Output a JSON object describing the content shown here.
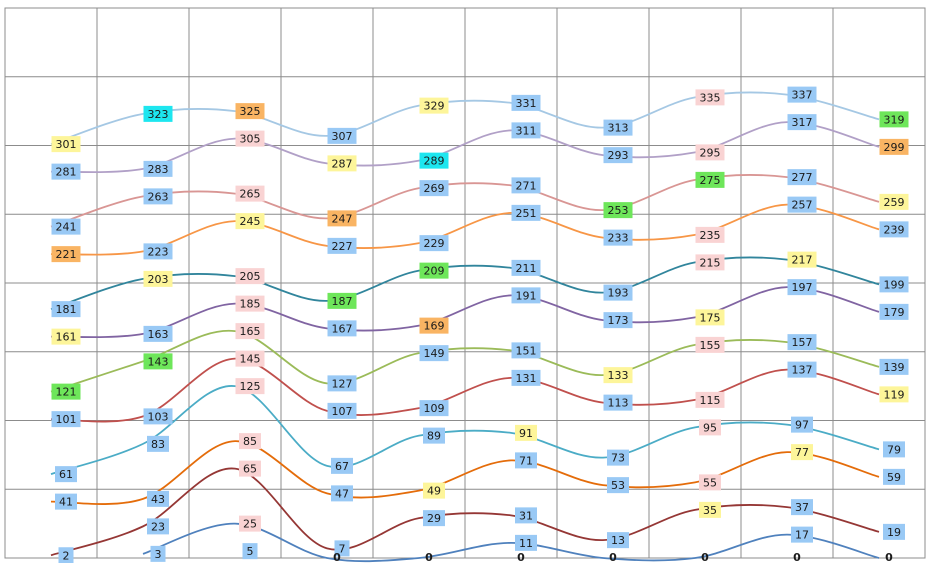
{
  "chart_data": {
    "type": "line",
    "smooth": true,
    "grid": true,
    "ylim": [
      0,
      400
    ],
    "yticks": [
      0,
      50,
      100,
      150,
      200,
      250,
      300,
      350,
      400
    ],
    "series": [
      {
        "color": "#a5c8e4",
        "values": [
          301,
          323,
          325,
          307,
          329,
          331,
          313,
          335,
          337,
          319
        ],
        "label_colors": [
          "#fdf59a",
          "#1de6ef",
          "#f9b463",
          "#99c9f5",
          "#fdf59a",
          "#99c9f5",
          "#99c9f5",
          "#f9d3d3",
          "#99c9f5",
          "#6ee65a"
        ]
      },
      {
        "color": "#b1a0c7",
        "values": [
          281,
          283,
          305,
          287,
          289,
          311,
          293,
          295,
          317,
          299
        ],
        "label_colors": [
          "#99c9f5",
          "#99c9f5",
          "#f9d3d3",
          "#fdf59a",
          "#1de6ef",
          "#99c9f5",
          "#99c9f5",
          "#f9d3d3",
          "#99c9f5",
          "#f9b463"
        ]
      },
      {
        "color": "#d99694",
        "values": [
          241,
          263,
          265,
          247,
          269,
          271,
          253,
          275,
          277,
          259
        ],
        "label_colors": [
          "#99c9f5",
          "#99c9f5",
          "#f9d3d3",
          "#f9b463",
          "#99c9f5",
          "#99c9f5",
          "#6ee65a",
          "#6ee65a",
          "#99c9f5",
          "#fdf59a"
        ]
      },
      {
        "color": "#f79646",
        "values": [
          221,
          223,
          245,
          227,
          229,
          251,
          233,
          235,
          257,
          239
        ],
        "label_colors": [
          "#f9b463",
          "#99c9f5",
          "#fdf59a",
          "#99c9f5",
          "#99c9f5",
          "#99c9f5",
          "#99c9f5",
          "#f9d3d3",
          "#99c9f5",
          "#99c9f5"
        ]
      },
      {
        "color": "#31859c",
        "values": [
          181,
          203,
          205,
          187,
          209,
          211,
          193,
          215,
          217,
          199
        ],
        "label_colors": [
          "#99c9f5",
          "#fdf59a",
          "#f9d3d3",
          "#6ee65a",
          "#6ee65a",
          "#99c9f5",
          "#99c9f5",
          "#f9d3d3",
          "#fdf59a",
          "#99c9f5"
        ]
      },
      {
        "color": "#8064a2",
        "values": [
          161,
          163,
          185,
          167,
          169,
          191,
          173,
          175,
          197,
          179
        ],
        "label_colors": [
          "#fdf59a",
          "#99c9f5",
          "#f9d3d3",
          "#99c9f5",
          "#f9b463",
          "#99c9f5",
          "#99c9f5",
          "#fdf59a",
          "#99c9f5",
          "#99c9f5"
        ]
      },
      {
        "color": "#9bbb59",
        "values": [
          121,
          143,
          165,
          127,
          149,
          151,
          133,
          155,
          157,
          139
        ],
        "label_colors": [
          "#6ee65a",
          "#6ee65a",
          "#f9d3d3",
          "#99c9f5",
          "#99c9f5",
          "#99c9f5",
          "#fdf59a",
          "#f9d3d3",
          "#99c9f5",
          "#99c9f5"
        ]
      },
      {
        "color": "#c0504d",
        "values": [
          101,
          103,
          145,
          107,
          109,
          131,
          113,
          115,
          137,
          119
        ],
        "label_colors": [
          "#99c9f5",
          "#99c9f5",
          "#f9d3d3",
          "#99c9f5",
          "#99c9f5",
          "#99c9f5",
          "#99c9f5",
          "#f9d3d3",
          "#99c9f5",
          "#fdf59a"
        ]
      },
      {
        "color": "#4bacc6",
        "values": [
          61,
          83,
          125,
          67,
          89,
          91,
          73,
          95,
          97,
          79
        ],
        "label_colors": [
          "#99c9f5",
          "#99c9f5",
          "#f9d3d3",
          "#99c9f5",
          "#99c9f5",
          "#fdf59a",
          "#99c9f5",
          "#f9d3d3",
          "#99c9f5",
          "#99c9f5"
        ]
      },
      {
        "color": "#e46c0a",
        "values": [
          41,
          43,
          85,
          47,
          49,
          71,
          53,
          55,
          77,
          59
        ],
        "label_colors": [
          "#99c9f5",
          "#99c9f5",
          "#f9d3d3",
          "#99c9f5",
          "#fdf59a",
          "#99c9f5",
          "#99c9f5",
          "#f9d3d3",
          "#fdf59a",
          "#99c9f5"
        ]
      },
      {
        "color": "#953735",
        "values": [
          2,
          23,
          65,
          7,
          29,
          31,
          13,
          35,
          37,
          19
        ],
        "label_colors": [
          "#99c9f5",
          "#99c9f5",
          "#f9d3d3",
          "#99c9f5",
          "#99c9f5",
          "#99c9f5",
          "#99c9f5",
          "#fdf59a",
          "#99c9f5",
          "#99c9f5"
        ]
      },
      {
        "color": "#4f81bd",
        "values": [
          null,
          3,
          25,
          0,
          0,
          11,
          0,
          0,
          17,
          0
        ],
        "label_colors": [
          null,
          "#99c9f5",
          "#f9d3d3",
          null,
          null,
          "#99c9f5",
          null,
          null,
          "#99c9f5",
          null
        ]
      },
      {
        "color": "#376092",
        "values": [
          null,
          null,
          5,
          null,
          null,
          0,
          null,
          null,
          0,
          null
        ],
        "label_colors": [
          null,
          null,
          "#99c9f5",
          null,
          null,
          null,
          null,
          null,
          null,
          null
        ]
      }
    ]
  }
}
